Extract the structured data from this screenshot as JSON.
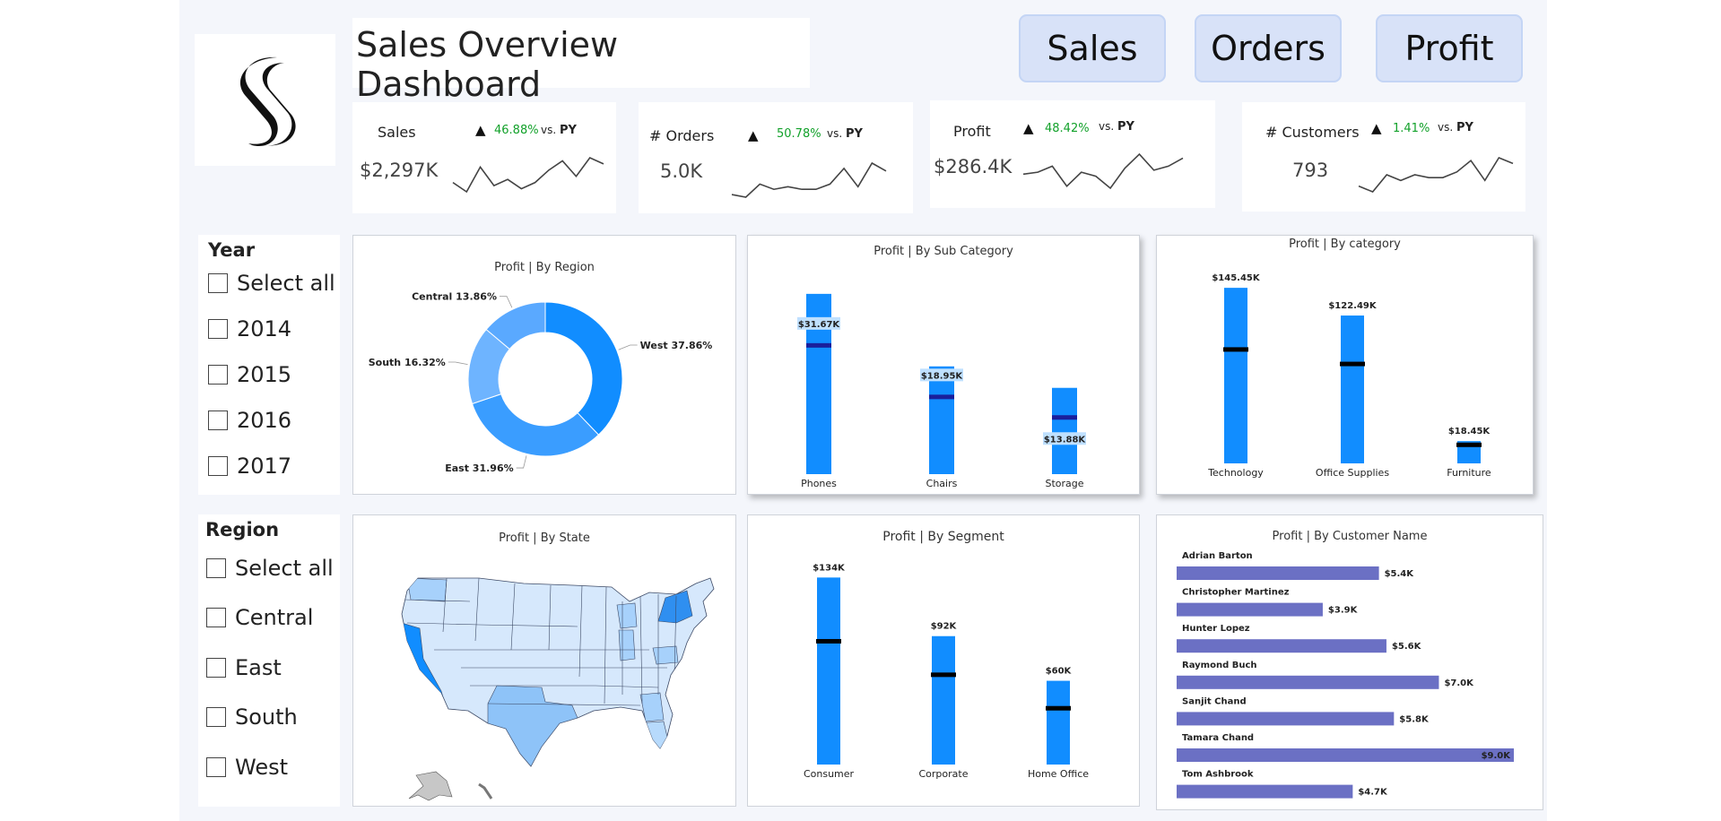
{
  "dashboard": {
    "title": "Sales Overview Dashboard",
    "nav": [
      "Sales",
      "Orders",
      "Profit"
    ],
    "accent": "#118dff",
    "target_color": "#000000",
    "customer_bar_color": "#6b70c4"
  },
  "kpis": [
    {
      "label": "Sales",
      "value": "$2,297K",
      "change": "46.88%",
      "vs": "vs.",
      "py": "PY",
      "trend": [
        5,
        2,
        10,
        4,
        6,
        3,
        5,
        9,
        12,
        7,
        13,
        11
      ]
    },
    {
      "label": "# Orders",
      "value": "5.0K",
      "change": "50.78%",
      "vs": "vs.",
      "py": "PY",
      "trend": [
        1,
        0,
        5,
        3,
        4,
        3,
        3,
        5,
        11,
        4,
        13,
        10
      ]
    },
    {
      "label": "Profit",
      "value": "$286.4K",
      "change": "48.42%",
      "vs": "vs.",
      "py": "PY",
      "trend": [
        8,
        9,
        12,
        2,
        9,
        7,
        1,
        11,
        18,
        10,
        12,
        16
      ]
    },
    {
      "label": "# Customers",
      "value": "793",
      "change": "1.41%",
      "vs": "vs.",
      "py": "PY",
      "trend": [
        4,
        2,
        8,
        6,
        8,
        7,
        7,
        9,
        13,
        6,
        14,
        12
      ]
    }
  ],
  "slicers": {
    "year": {
      "title": "Year",
      "items": [
        "Select all",
        "2014",
        "2015",
        "2016",
        "2017"
      ]
    },
    "region": {
      "title": "Region",
      "items": [
        "Select all",
        "Central",
        "East",
        "South",
        "West"
      ]
    }
  },
  "chart_data": [
    {
      "type": "pie",
      "title": "Profit | By Region",
      "categories": [
        "West",
        "East",
        "South",
        "Central"
      ],
      "values": [
        37.86,
        31.96,
        16.32,
        13.86
      ],
      "labels": [
        "West 37.86%",
        "East 31.96%",
        "South 16.32%",
        "Central 13.86%"
      ],
      "colors": [
        "#118dff",
        "#3a9dff",
        "#6eb4ff",
        "#5aa9ff"
      ]
    },
    {
      "type": "bar",
      "title": "Profit | By Sub Category",
      "categories": [
        "Phones",
        "Chairs",
        "Storage"
      ],
      "values": [
        44.5,
        26.6,
        21.3
      ],
      "targets": [
        31.67,
        18.95,
        13.88
      ],
      "target_labels": [
        "$31.67K",
        "$18.95K",
        "$13.88K"
      ],
      "ylim": [
        0,
        50
      ]
    },
    {
      "type": "bar",
      "title": "Profit | By category",
      "categories": [
        "Technology",
        "Office Supplies",
        "Furniture"
      ],
      "values": [
        145.45,
        122.49,
        18.45
      ],
      "value_labels": [
        "$145.45K",
        "$122.49K",
        "$18.45K"
      ],
      "targets": [
        94,
        82,
        15
      ],
      "ylim": [
        0,
        150
      ]
    },
    {
      "type": "heatmap",
      "title": "Profit | By State",
      "note": "choropleth map of US states shaded by profit"
    },
    {
      "type": "bar",
      "title": "Profit | By Segment",
      "categories": [
        "Consumer",
        "Corporate",
        "Home Office"
      ],
      "values": [
        134,
        92,
        60
      ],
      "value_labels": [
        "$134K",
        "$92K",
        "$60K"
      ],
      "targets": [
        88,
        64,
        40
      ],
      "ylim": [
        0,
        140
      ]
    },
    {
      "type": "bar",
      "title": "Profit | By Customer Name",
      "orientation": "horizontal",
      "categories": [
        "Adrian Barton",
        "Christopher Martinez",
        "Hunter Lopez",
        "Raymond Buch",
        "Sanjit Chand",
        "Tamara Chand",
        "Tom Ashbrook"
      ],
      "values": [
        5.4,
        3.9,
        5.6,
        7.0,
        5.8,
        9.0,
        4.7
      ],
      "value_labels": [
        "$5.4K",
        "$3.9K",
        "$5.6K",
        "$7.0K",
        "$5.8K",
        "$9.0K",
        "$4.7K"
      ],
      "xlim": [
        0,
        9
      ]
    }
  ]
}
